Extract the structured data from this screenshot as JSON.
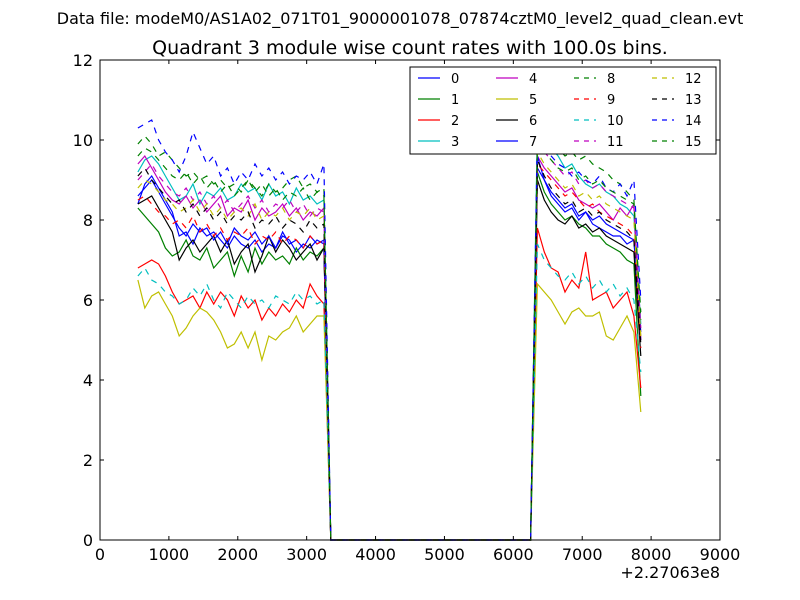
{
  "chart_data": {
    "type": "line",
    "suptitle": "Data file: modeM0/AS1A02_071T01_9000001078_07874cztM0_level2_quad_clean.evt",
    "title": "Quadrant 3 module wise count rates with 100.0s bins.",
    "xlabel": "",
    "ylabel": "",
    "x_offset_label": "+2.27063e8",
    "xlim": [
      0,
      9000
    ],
    "ylim": [
      0,
      12
    ],
    "xticks": [
      0,
      1000,
      2000,
      3000,
      4000,
      5000,
      6000,
      7000,
      8000,
      9000
    ],
    "yticks": [
      0,
      2,
      4,
      6,
      8,
      10,
      12
    ],
    "grid": false,
    "legend_position": "top-right",
    "legend_columns": 4,
    "x_start": 550,
    "x_step": 100,
    "series": [
      {
        "name": "0",
        "color": "#0000ff",
        "dash": "solid",
        "values": [
          8.4,
          8.9,
          9.1,
          8.8,
          8.5,
          8.2,
          7.6,
          7.7,
          7.4,
          7.8,
          7.6,
          7.7,
          7.5,
          7.3,
          7.6,
          7.4,
          7.3,
          7.5,
          7.2,
          7.4,
          7.3,
          7.6,
          7.5,
          7.2,
          7.4,
          7.3,
          7.5,
          7.4,
          0.0,
          0,
          0,
          0,
          0,
          0,
          0,
          0,
          0,
          0,
          0,
          0,
          0,
          0,
          0,
          0,
          0,
          0,
          0,
          0,
          0,
          0,
          0,
          0,
          0,
          0,
          0,
          0,
          0,
          0,
          9.3,
          9.0,
          8.6,
          8.4,
          8.2,
          8.3,
          8.0,
          8.2,
          7.9,
          7.8,
          7.7,
          7.6,
          7.6,
          7.4,
          7.5,
          5.0
        ]
      },
      {
        "name": "1",
        "color": "#008000",
        "dash": "solid",
        "values": [
          8.3,
          8.1,
          7.9,
          7.7,
          7.3,
          7.1,
          7.2,
          7.5,
          7.1,
          7.0,
          7.3,
          6.8,
          7.0,
          7.2,
          6.6,
          7.1,
          6.7,
          7.3,
          6.9,
          7.2,
          7.0,
          7.1,
          6.9,
          7.3,
          7.0,
          7.2,
          7.1,
          7.3,
          0.0,
          0,
          0,
          0,
          0,
          0,
          0,
          0,
          0,
          0,
          0,
          0,
          0,
          0,
          0,
          0,
          0,
          0,
          0,
          0,
          0,
          0,
          0,
          0,
          0,
          0,
          0,
          0,
          0,
          0,
          9.2,
          8.7,
          8.4,
          8.2,
          8.0,
          8.1,
          7.9,
          7.8,
          7.6,
          7.6,
          7.4,
          7.3,
          7.2,
          7.0,
          6.9,
          3.6
        ]
      },
      {
        "name": "2",
        "color": "#ff0000",
        "dash": "solid",
        "values": [
          6.8,
          6.9,
          7.0,
          6.9,
          6.6,
          6.2,
          5.9,
          6.0,
          6.1,
          5.8,
          6.2,
          5.9,
          6.2,
          6.0,
          5.6,
          6.1,
          5.8,
          6.0,
          5.5,
          5.8,
          5.6,
          5.9,
          5.7,
          6.0,
          5.8,
          6.4,
          6.1,
          5.9,
          0.0,
          0,
          0,
          0,
          0,
          0,
          0,
          0,
          0,
          0,
          0,
          0,
          0,
          0,
          0,
          0,
          0,
          0,
          0,
          0,
          0,
          0,
          0,
          0,
          0,
          0,
          0,
          0,
          0,
          0,
          7.8,
          7.2,
          6.8,
          6.7,
          6.2,
          6.5,
          6.3,
          7.2,
          6.0,
          6.1,
          6.2,
          5.8,
          6.0,
          6.2,
          5.6,
          3.8
        ]
      },
      {
        "name": "3",
        "color": "#00bfbf",
        "dash": "solid",
        "values": [
          9.2,
          9.5,
          9.6,
          9.4,
          9.1,
          8.8,
          8.5,
          8.6,
          8.9,
          8.4,
          8.7,
          8.6,
          8.8,
          8.5,
          8.6,
          8.9,
          8.7,
          8.8,
          8.5,
          8.9,
          8.6,
          8.7,
          8.4,
          8.8,
          8.5,
          8.6,
          8.4,
          8.5,
          0.0,
          0,
          0,
          0,
          0,
          0,
          0,
          0,
          0,
          0,
          0,
          0,
          0,
          0,
          0,
          0,
          0,
          0,
          0,
          0,
          0,
          0,
          0,
          0,
          0,
          0,
          0,
          0,
          0,
          0,
          10.4,
          10.1,
          9.8,
          9.6,
          9.3,
          9.4,
          9.1,
          8.9,
          8.8,
          8.9,
          8.7,
          8.6,
          8.4,
          8.3,
          8.1,
          5.4
        ]
      },
      {
        "name": "4",
        "color": "#bf00bf",
        "dash": "solid",
        "values": [
          9.4,
          9.6,
          9.3,
          9.0,
          8.7,
          8.5,
          8.4,
          8.6,
          8.3,
          8.5,
          8.2,
          8.4,
          8.6,
          8.1,
          8.3,
          8.2,
          8.5,
          8.0,
          8.3,
          8.1,
          8.2,
          8.4,
          8.1,
          8.3,
          8.0,
          8.2,
          8.1,
          8.3,
          0.0,
          0,
          0,
          0,
          0,
          0,
          0,
          0,
          0,
          0,
          0,
          0,
          0,
          0,
          0,
          0,
          0,
          0,
          0,
          0,
          0,
          0,
          0,
          0,
          0,
          0,
          0,
          0,
          0,
          0,
          9.6,
          9.3,
          9.1,
          8.9,
          8.7,
          8.8,
          8.5,
          8.4,
          8.3,
          8.4,
          8.2,
          8.0,
          8.3,
          8.1,
          8.4,
          5.0
        ]
      },
      {
        "name": "5",
        "color": "#bfbf00",
        "dash": "solid",
        "values": [
          6.5,
          5.8,
          6.1,
          6.2,
          5.9,
          5.6,
          5.1,
          5.3,
          5.6,
          5.8,
          5.7,
          5.5,
          5.2,
          4.8,
          4.9,
          5.2,
          4.8,
          5.2,
          4.5,
          5.1,
          5.0,
          5.2,
          5.3,
          5.6,
          5.2,
          5.4,
          5.6,
          5.6,
          0.0,
          0,
          0,
          0,
          0,
          0,
          0,
          0,
          0,
          0,
          0,
          0,
          0,
          0,
          0,
          0,
          0,
          0,
          0,
          0,
          0,
          0,
          0,
          0,
          0,
          0,
          0,
          0,
          0,
          0,
          6.4,
          6.2,
          6.0,
          5.7,
          5.4,
          5.7,
          5.8,
          5.6,
          5.6,
          5.7,
          5.1,
          5.0,
          5.3,
          5.6,
          5.2,
          3.2
        ]
      },
      {
        "name": "6",
        "color": "#000000",
        "dash": "solid",
        "values": [
          8.4,
          8.5,
          8.6,
          8.3,
          8.0,
          7.7,
          7.0,
          7.3,
          7.5,
          7.2,
          7.4,
          7.6,
          7.2,
          7.5,
          6.9,
          7.2,
          7.4,
          6.7,
          7.1,
          7.6,
          7.2,
          7.5,
          7.3,
          7.0,
          7.2,
          7.4,
          7.0,
          7.3,
          0.0,
          0,
          0,
          0,
          0,
          0,
          0,
          0,
          0,
          0,
          0,
          0,
          0,
          0,
          0,
          0,
          0,
          0,
          0,
          0,
          0,
          0,
          0,
          0,
          0,
          0,
          0,
          0,
          0,
          0,
          9.0,
          8.5,
          8.2,
          8.0,
          7.9,
          8.1,
          7.8,
          7.9,
          7.7,
          7.8,
          7.6,
          7.5,
          7.4,
          7.3,
          7.2,
          4.6
        ]
      },
      {
        "name": "7",
        "color": "#0000ff",
        "dash": "solid",
        "values": [
          8.6,
          8.8,
          9.0,
          8.7,
          8.4,
          8.1,
          7.8,
          7.6,
          7.9,
          7.7,
          7.8,
          7.5,
          7.7,
          7.4,
          7.8,
          7.6,
          7.5,
          7.7,
          7.4,
          7.6,
          7.3,
          7.7,
          7.4,
          7.5,
          7.3,
          7.6,
          7.4,
          7.5,
          0.0,
          0,
          0,
          0,
          0,
          0,
          0,
          0,
          0,
          0,
          0,
          0,
          0,
          0,
          0,
          0,
          0,
          0,
          0,
          0,
          0,
          0,
          0,
          0,
          0,
          0,
          0,
          0,
          0,
          0,
          9.6,
          9.0,
          8.7,
          8.5,
          8.3,
          8.4,
          8.1,
          8.2,
          8.0,
          8.1,
          7.9,
          7.8,
          7.7,
          7.6,
          7.5,
          5.2
        ]
      },
      {
        "name": "8",
        "color": "#008000",
        "dash": "dashed",
        "values": [
          9.9,
          10.1,
          9.9,
          9.6,
          9.7,
          9.5,
          9.3,
          9.1,
          9.2,
          9.0,
          9.1,
          8.9,
          9.0,
          8.8,
          8.9,
          8.7,
          9.0,
          8.8,
          8.6,
          8.9,
          8.7,
          8.8,
          9.0,
          9.1,
          8.8,
          8.9,
          8.7,
          8.8,
          0.0,
          0,
          0,
          0,
          0,
          0,
          0,
          0,
          0,
          0,
          0,
          0,
          0,
          0,
          0,
          0,
          0,
          0,
          0,
          0,
          0,
          0,
          0,
          0,
          0,
          0,
          0,
          0,
          0,
          0,
          10.0,
          9.9,
          9.7,
          9.8,
          9.6,
          9.7,
          9.5,
          9.6,
          9.4,
          9.3,
          9.2,
          9.0,
          8.9,
          8.7,
          8.5,
          5.5
        ]
      },
      {
        "name": "9",
        "color": "#ff0000",
        "dash": "dashed",
        "values": [
          8.5,
          8.6,
          8.4,
          8.2,
          8.1,
          7.9,
          8.0,
          7.8,
          8.1,
          7.7,
          7.9,
          7.6,
          7.8,
          7.5,
          7.7,
          7.6,
          7.8,
          7.4,
          7.6,
          7.5,
          7.7,
          7.4,
          7.6,
          7.5,
          7.3,
          7.6,
          7.4,
          7.5,
          0.0,
          0,
          0,
          0,
          0,
          0,
          0,
          0,
          0,
          0,
          0,
          0,
          0,
          0,
          0,
          0,
          0,
          0,
          0,
          0,
          0,
          0,
          0,
          0,
          0,
          0,
          0,
          0,
          0,
          0,
          9.4,
          9.2,
          9.0,
          8.8,
          8.6,
          8.7,
          8.5,
          8.3,
          8.4,
          8.2,
          8.1,
          8.0,
          7.9,
          7.8,
          7.6,
          4.8
        ]
      },
      {
        "name": "10",
        "color": "#00bfbf",
        "dash": "dashed",
        "values": [
          6.6,
          6.8,
          6.5,
          6.4,
          6.2,
          6.1,
          5.9,
          6.0,
          6.3,
          6.1,
          6.4,
          6.0,
          5.8,
          6.2,
          6.0,
          5.8,
          6.1,
          5.9,
          6.0,
          5.8,
          6.1,
          6.0,
          5.9,
          6.2,
          6.0,
          6.1,
          5.9,
          6.0,
          0.0,
          0,
          0,
          0,
          0,
          0,
          0,
          0,
          0,
          0,
          0,
          0,
          0,
          0,
          0,
          0,
          0,
          0,
          0,
          0,
          0,
          0,
          0,
          0,
          0,
          0,
          0,
          0,
          0,
          0,
          7.4,
          7.0,
          6.8,
          6.6,
          6.5,
          6.7,
          6.4,
          6.6,
          6.3,
          6.5,
          6.2,
          6.4,
          6.1,
          6.3,
          6.0,
          4.2
        ]
      },
      {
        "name": "11",
        "color": "#bf00bf",
        "dash": "dashed",
        "values": [
          9.0,
          9.2,
          9.4,
          9.1,
          8.9,
          8.7,
          8.6,
          8.8,
          8.5,
          8.7,
          8.4,
          8.6,
          8.3,
          8.5,
          8.2,
          8.4,
          8.6,
          8.3,
          8.5,
          8.2,
          8.4,
          8.3,
          8.5,
          8.2,
          8.4,
          8.1,
          8.3,
          8.2,
          0.0,
          0,
          0,
          0,
          0,
          0,
          0,
          0,
          0,
          0,
          0,
          0,
          0,
          0,
          0,
          0,
          0,
          0,
          0,
          0,
          0,
          0,
          0,
          0,
          0,
          0,
          0,
          0,
          0,
          0,
          10.0,
          9.7,
          9.5,
          9.3,
          9.1,
          9.2,
          8.9,
          9.0,
          8.8,
          8.9,
          8.7,
          8.6,
          8.5,
          8.4,
          8.3,
          5.3
        ]
      },
      {
        "name": "12",
        "color": "#bfbf00",
        "dash": "dashed",
        "values": [
          8.8,
          9.0,
          8.9,
          8.7,
          8.5,
          8.4,
          8.2,
          8.3,
          8.5,
          8.2,
          8.4,
          8.1,
          8.3,
          8.0,
          8.2,
          8.3,
          8.1,
          8.4,
          8.0,
          8.2,
          8.1,
          8.3,
          8.0,
          8.2,
          8.1,
          8.3,
          8.0,
          8.1,
          0.0,
          0,
          0,
          0,
          0,
          0,
          0,
          0,
          0,
          0,
          0,
          0,
          0,
          0,
          0,
          0,
          0,
          0,
          0,
          0,
          0,
          0,
          0,
          0,
          0,
          0,
          0,
          0,
          0,
          0,
          9.7,
          9.4,
          9.2,
          9.0,
          8.8,
          8.9,
          8.6,
          8.7,
          8.5,
          8.6,
          8.4,
          8.3,
          8.2,
          8.1,
          8.0,
          5.1
        ]
      },
      {
        "name": "13",
        "color": "#000000",
        "dash": "dashed",
        "values": [
          9.1,
          9.3,
          9.0,
          8.8,
          8.6,
          8.4,
          8.5,
          8.2,
          8.4,
          8.1,
          8.3,
          8.0,
          8.2,
          7.9,
          8.1,
          8.0,
          8.2,
          7.8,
          8.0,
          7.9,
          8.1,
          7.8,
          8.0,
          7.9,
          7.7,
          8.0,
          7.8,
          7.9,
          0.0,
          0,
          0,
          0,
          0,
          0,
          0,
          0,
          0,
          0,
          0,
          0,
          0,
          0,
          0,
          0,
          0,
          0,
          0,
          0,
          0,
          0,
          0,
          0,
          0,
          0,
          0,
          0,
          0,
          0,
          9.5,
          9.1,
          8.8,
          8.6,
          8.4,
          8.5,
          8.2,
          8.3,
          8.1,
          8.2,
          8.0,
          7.9,
          7.8,
          7.7,
          7.5,
          4.9
        ]
      },
      {
        "name": "14",
        "color": "#0000ff",
        "dash": "dashed",
        "values": [
          10.3,
          10.4,
          10.5,
          10.0,
          9.7,
          9.5,
          9.2,
          9.6,
          10.2,
          9.8,
          9.4,
          9.6,
          9.1,
          9.3,
          8.9,
          9.2,
          9.0,
          9.4,
          9.1,
          9.3,
          9.0,
          9.2,
          8.9,
          9.1,
          9.0,
          9.2,
          8.9,
          9.4,
          0.0,
          0,
          0,
          0,
          0,
          0,
          0,
          0,
          0,
          0,
          0,
          0,
          0,
          0,
          0,
          0,
          0,
          0,
          0,
          0,
          0,
          0,
          0,
          0,
          0,
          0,
          0,
          0,
          0,
          0,
          10.2,
          9.9,
          9.6,
          9.4,
          9.3,
          9.1,
          9.2,
          9.0,
          8.9,
          9.1,
          8.8,
          8.7,
          8.9,
          8.6,
          9.0,
          6.0
        ]
      },
      {
        "name": "15",
        "color": "#008000",
        "dash": "dashed",
        "values": [
          9.6,
          9.8,
          9.7,
          9.5,
          9.3,
          9.1,
          9.0,
          9.2,
          8.9,
          9.1,
          8.8,
          9.0,
          8.7,
          8.9,
          8.6,
          8.8,
          9.0,
          8.7,
          8.9,
          8.6,
          8.8,
          8.5,
          8.7,
          8.6,
          8.8,
          8.5,
          8.7,
          8.6,
          0.0,
          0,
          0,
          0,
          0,
          0,
          0,
          0,
          0,
          0,
          0,
          0,
          0,
          0,
          0,
          0,
          0,
          0,
          0,
          0,
          0,
          0,
          0,
          0,
          0,
          0,
          0,
          0,
          0,
          0,
          9.9,
          9.7,
          9.5,
          9.3,
          9.2,
          9.3,
          9.0,
          9.1,
          8.9,
          9.0,
          8.8,
          8.7,
          8.6,
          8.5,
          8.4,
          5.7
        ]
      }
    ]
  }
}
